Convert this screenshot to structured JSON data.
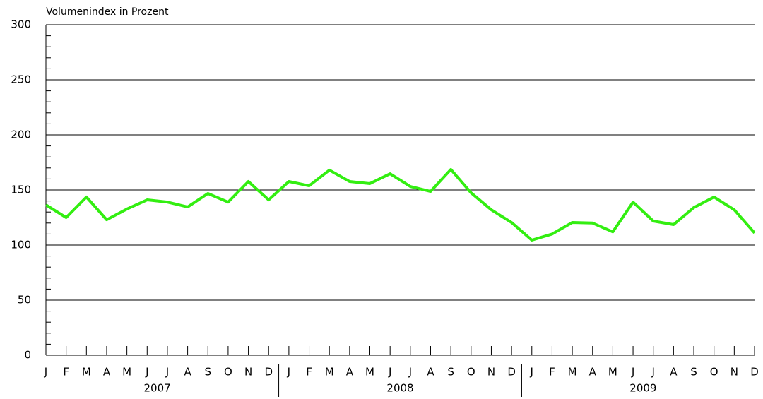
{
  "chart_data": {
    "type": "line",
    "y_axis_label": "Volumenindex in Prozent",
    "categories": [
      "J",
      "F",
      "M",
      "A",
      "M",
      "J",
      "J",
      "A",
      "S",
      "O",
      "N",
      "D",
      "J",
      "F",
      "M",
      "A",
      "M",
      "J",
      "J",
      "A",
      "S",
      "O",
      "N",
      "D",
      "J",
      "F",
      "M",
      "A",
      "M",
      "J",
      "J",
      "A",
      "S",
      "O",
      "N",
      "D"
    ],
    "years": [
      "2007",
      "2008",
      "2009"
    ],
    "series": [
      {
        "name": "Volumenindex",
        "color": "#33ee11",
        "values": [
          136.5,
          125,
          143.6,
          123,
          132.7,
          141,
          139,
          134.6,
          146.8,
          139,
          157.7,
          141,
          157.7,
          153.8,
          168,
          157.7,
          155.8,
          164.7,
          153.2,
          148.7,
          168.6,
          147.4,
          132,
          120.5,
          104.5,
          110,
          120.5,
          120,
          112,
          139,
          121.8,
          118.6,
          134,
          143.6,
          132,
          111
        ]
      }
    ],
    "ylim": [
      0,
      300
    ],
    "yticks": [
      0,
      50,
      100,
      150,
      200,
      250,
      300
    ],
    "minor_yticks": [
      10,
      20,
      30,
      40,
      60,
      70,
      80,
      90,
      110,
      120,
      130,
      140,
      160,
      170,
      180,
      190,
      210,
      220,
      230,
      240,
      260,
      270,
      280,
      290
    ],
    "grid": true
  }
}
